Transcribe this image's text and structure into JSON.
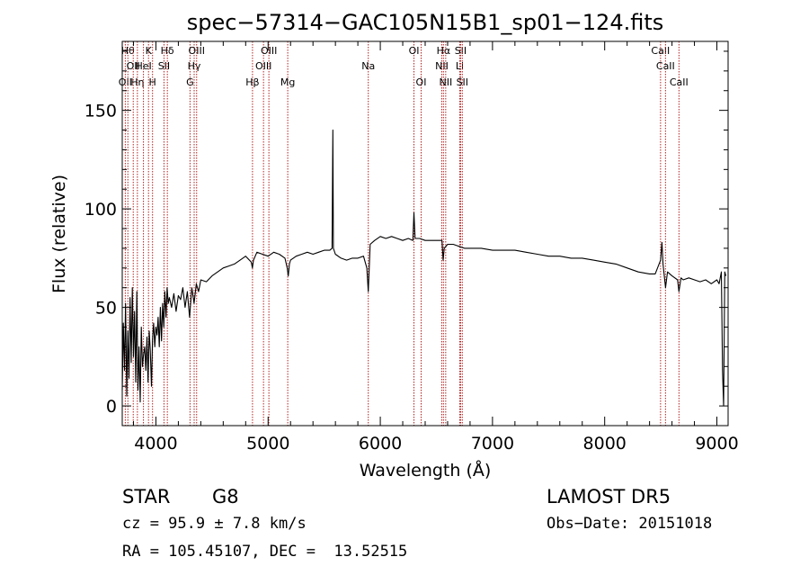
{
  "chart_data": {
    "type": "line",
    "title": "spec−57314−GAC105N15B1_sp01−124.fits",
    "xlabel": "Wavelength (Å)",
    "ylabel": "Flux (relative)",
    "xlim": [
      3700,
      9100
    ],
    "ylim": [
      -10,
      185
    ],
    "xticks": [
      4000,
      5000,
      6000,
      7000,
      8000,
      9000
    ],
    "yticks": [
      0,
      50,
      100,
      150
    ],
    "grid": false,
    "line_color": "#000000",
    "marker_color": "#b22222",
    "series": [
      {
        "values": [
          [
            3700,
            8
          ],
          [
            3710,
            42
          ],
          [
            3720,
            18
          ],
          [
            3730,
            52
          ],
          [
            3740,
            5
          ],
          [
            3750,
            38
          ],
          [
            3760,
            14
          ],
          [
            3770,
            55
          ],
          [
            3780,
            22
          ],
          [
            3790,
            60
          ],
          [
            3800,
            25
          ],
          [
            3810,
            48
          ],
          [
            3820,
            12
          ],
          [
            3830,
            58
          ],
          [
            3840,
            8
          ],
          [
            3850,
            30
          ],
          [
            3860,
            2
          ],
          [
            3870,
            40
          ],
          [
            3880,
            20
          ],
          [
            3890,
            26
          ],
          [
            3900,
            30
          ],
          [
            3910,
            18
          ],
          [
            3920,
            35
          ],
          [
            3930,
            12
          ],
          [
            3940,
            38
          ],
          [
            3950,
            28
          ],
          [
            3960,
            10
          ],
          [
            3970,
            34
          ],
          [
            3980,
            42
          ],
          [
            3990,
            30
          ],
          [
            4000,
            40
          ],
          [
            4010,
            36
          ],
          [
            4020,
            45
          ],
          [
            4030,
            30
          ],
          [
            4040,
            50
          ],
          [
            4050,
            33
          ],
          [
            4060,
            52
          ],
          [
            4070,
            40
          ],
          [
            4080,
            58
          ],
          [
            4090,
            45
          ],
          [
            4100,
            60
          ],
          [
            4110,
            52
          ],
          [
            4120,
            55
          ],
          [
            4140,
            50
          ],
          [
            4160,
            57
          ],
          [
            4180,
            48
          ],
          [
            4200,
            56
          ],
          [
            4220,
            54
          ],
          [
            4240,
            60
          ],
          [
            4260,
            50
          ],
          [
            4280,
            58
          ],
          [
            4300,
            45
          ],
          [
            4320,
            60
          ],
          [
            4340,
            52
          ],
          [
            4360,
            62
          ],
          [
            4380,
            58
          ],
          [
            4400,
            64
          ],
          [
            4450,
            63
          ],
          [
            4500,
            66
          ],
          [
            4550,
            68
          ],
          [
            4600,
            70
          ],
          [
            4650,
            71
          ],
          [
            4700,
            72
          ],
          [
            4750,
            74
          ],
          [
            4800,
            76
          ],
          [
            4850,
            73
          ],
          [
            4860,
            70
          ],
          [
            4870,
            74
          ],
          [
            4900,
            78
          ],
          [
            4950,
            77
          ],
          [
            5000,
            76
          ],
          [
            5050,
            78
          ],
          [
            5100,
            77
          ],
          [
            5150,
            75
          ],
          [
            5170,
            70
          ],
          [
            5180,
            66
          ],
          [
            5190,
            72
          ],
          [
            5200,
            74
          ],
          [
            5250,
            76
          ],
          [
            5300,
            77
          ],
          [
            5350,
            78
          ],
          [
            5400,
            77
          ],
          [
            5450,
            78
          ],
          [
            5500,
            79
          ],
          [
            5550,
            79
          ],
          [
            5570,
            80
          ],
          [
            5577,
            140
          ],
          [
            5582,
            80
          ],
          [
            5600,
            77
          ],
          [
            5650,
            75
          ],
          [
            5700,
            74
          ],
          [
            5750,
            75
          ],
          [
            5800,
            75
          ],
          [
            5850,
            76
          ],
          [
            5880,
            70
          ],
          [
            5893,
            58
          ],
          [
            5900,
            68
          ],
          [
            5910,
            82
          ],
          [
            5950,
            84
          ],
          [
            6000,
            86
          ],
          [
            6050,
            85
          ],
          [
            6100,
            86
          ],
          [
            6150,
            85
          ],
          [
            6200,
            84
          ],
          [
            6250,
            85
          ],
          [
            6290,
            84
          ],
          [
            6300,
            98
          ],
          [
            6310,
            85
          ],
          [
            6350,
            85
          ],
          [
            6400,
            84
          ],
          [
            6450,
            84
          ],
          [
            6500,
            84
          ],
          [
            6550,
            84
          ],
          [
            6560,
            74
          ],
          [
            6570,
            80
          ],
          [
            6600,
            82
          ],
          [
            6650,
            82
          ],
          [
            6700,
            81
          ],
          [
            6750,
            80
          ],
          [
            6800,
            80
          ],
          [
            6900,
            80
          ],
          [
            7000,
            79
          ],
          [
            7100,
            79
          ],
          [
            7200,
            79
          ],
          [
            7300,
            78
          ],
          [
            7400,
            77
          ],
          [
            7500,
            76
          ],
          [
            7600,
            76
          ],
          [
            7700,
            75
          ],
          [
            7800,
            75
          ],
          [
            7900,
            74
          ],
          [
            8000,
            73
          ],
          [
            8100,
            72
          ],
          [
            8200,
            70
          ],
          [
            8300,
            68
          ],
          [
            8400,
            67
          ],
          [
            8450,
            67
          ],
          [
            8498,
            74
          ],
          [
            8510,
            83
          ],
          [
            8520,
            72
          ],
          [
            8542,
            60
          ],
          [
            8560,
            68
          ],
          [
            8600,
            66
          ],
          [
            8650,
            64
          ],
          [
            8662,
            58
          ],
          [
            8680,
            65
          ],
          [
            8700,
            64
          ],
          [
            8750,
            65
          ],
          [
            8800,
            64
          ],
          [
            8850,
            63
          ],
          [
            8900,
            64
          ],
          [
            8950,
            62
          ],
          [
            9000,
            64
          ],
          [
            9020,
            62
          ],
          [
            9040,
            68
          ],
          [
            9050,
            18
          ],
          [
            9060,
            0
          ],
          [
            9070,
            68
          ],
          [
            9080,
            66
          ]
        ]
      }
    ],
    "line_markers": [
      {
        "x": 3727,
        "label": "OII",
        "row": 2
      },
      {
        "x": 3750,
        "label": "Hθ",
        "row": 0
      },
      {
        "x": 3798,
        "label": "OII",
        "row": 1
      },
      {
        "x": 3835,
        "label": "Hη",
        "row": 2
      },
      {
        "x": 3889,
        "label": "HeI",
        "row": 1
      },
      {
        "x": 3934,
        "label": "K",
        "row": 0
      },
      {
        "x": 3970,
        "label": "H",
        "row": 2
      },
      {
        "x": 4072,
        "label": "SII",
        "row": 1
      },
      {
        "x": 4102,
        "label": "Hδ",
        "row": 0
      },
      {
        "x": 4304,
        "label": "G",
        "row": 2
      },
      {
        "x": 4341,
        "label": "Hγ",
        "row": 1
      },
      {
        "x": 4363,
        "label": "OIII",
        "row": 0
      },
      {
        "x": 4861,
        "label": "Hβ",
        "row": 2
      },
      {
        "x": 4959,
        "label": "OIII",
        "row": 1
      },
      {
        "x": 5007,
        "label": "OIII",
        "row": 0
      },
      {
        "x": 5175,
        "label": "Mg",
        "row": 2
      },
      {
        "x": 5893,
        "label": "Na",
        "row": 1
      },
      {
        "x": 6300,
        "label": "OI",
        "row": 0
      },
      {
        "x": 6364,
        "label": "OI",
        "row": 2
      },
      {
        "x": 6548,
        "label": "NII",
        "row": 1
      },
      {
        "x": 6563,
        "label": "Hα",
        "row": 0
      },
      {
        "x": 6583,
        "label": "NII",
        "row": 2
      },
      {
        "x": 6708,
        "label": "Li",
        "row": 1
      },
      {
        "x": 6716,
        "label": "SII",
        "row": 0
      },
      {
        "x": 6731,
        "label": "SII",
        "row": 2
      },
      {
        "x": 8498,
        "label": "CaII",
        "row": 0
      },
      {
        "x": 8542,
        "label": "CaII",
        "row": 1
      },
      {
        "x": 8662,
        "label": "CaII",
        "row": 2
      }
    ]
  },
  "info": {
    "class": "STAR",
    "subclass": "G8",
    "survey": "LAMOST DR5",
    "cz": "cz = 95.9 ± 7.8 km/s",
    "obs_date": "Obs−Date: 20151018",
    "radec": "RA = 105.45107, DEC =  13.52515"
  }
}
